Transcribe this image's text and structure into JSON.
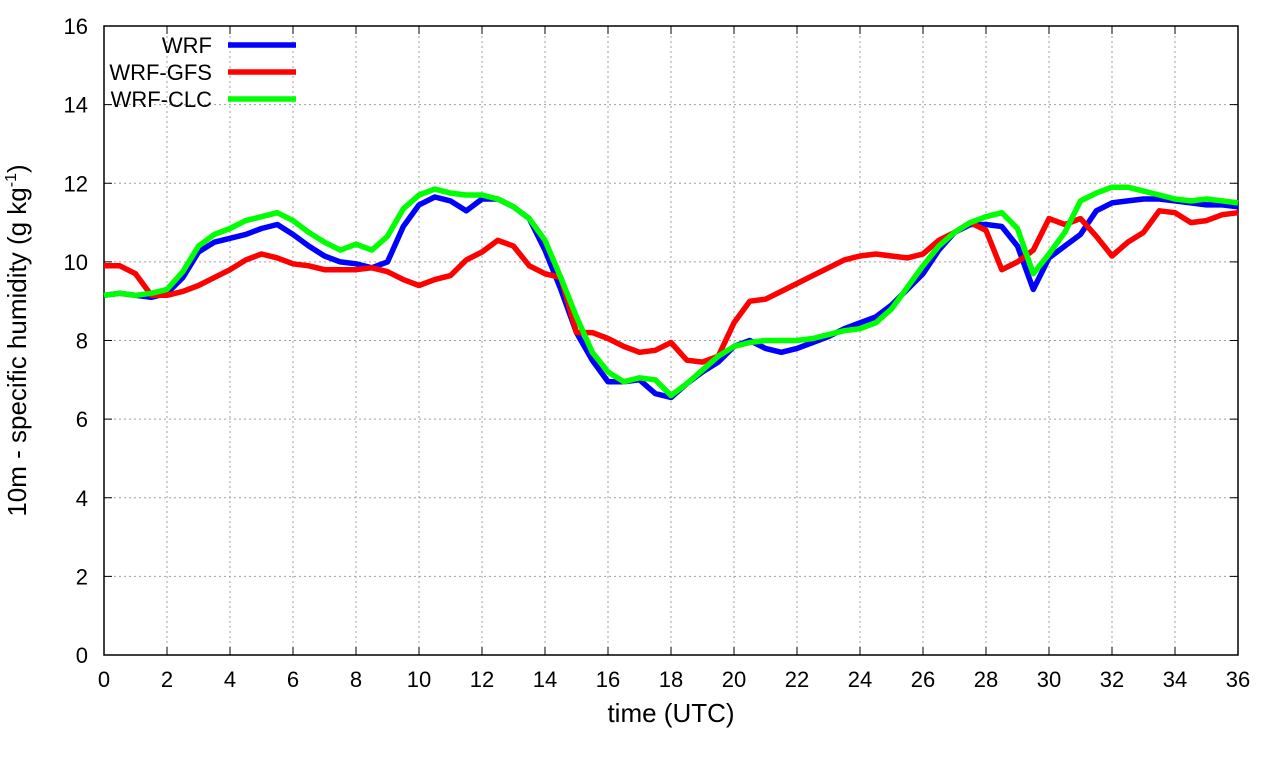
{
  "chart_data": {
    "type": "line",
    "xlabel": "time (UTC)",
    "ylabel_main": "10m - specific humidity (g kg",
    "ylabel_sup": "-1",
    "ylabel_close": ")",
    "xlim": [
      0,
      36
    ],
    "ylim": [
      0,
      16
    ],
    "xticks": [
      0,
      2,
      4,
      6,
      8,
      10,
      12,
      14,
      16,
      18,
      20,
      22,
      24,
      26,
      28,
      30,
      32,
      34,
      36
    ],
    "yticks": [
      0,
      2,
      4,
      6,
      8,
      10,
      12,
      14,
      16
    ],
    "grid": true,
    "legend_position": "top-left",
    "series": [
      {
        "name": "WRF",
        "color": "#0000ff",
        "points": [
          [
            0,
            9.15
          ],
          [
            0.5,
            9.2
          ],
          [
            1,
            9.15
          ],
          [
            1.5,
            9.1
          ],
          [
            2,
            9.2
          ],
          [
            2.5,
            9.6
          ],
          [
            3,
            10.25
          ],
          [
            3.5,
            10.5
          ],
          [
            4,
            10.6
          ],
          [
            4.5,
            10.7
          ],
          [
            5,
            10.85
          ],
          [
            5.5,
            10.95
          ],
          [
            6,
            10.7
          ],
          [
            6.5,
            10.4
          ],
          [
            7,
            10.15
          ],
          [
            7.5,
            10.0
          ],
          [
            8,
            9.95
          ],
          [
            8.5,
            9.85
          ],
          [
            9,
            10.0
          ],
          [
            9.5,
            10.9
          ],
          [
            10,
            11.45
          ],
          [
            10.5,
            11.65
          ],
          [
            11,
            11.55
          ],
          [
            11.5,
            11.3
          ],
          [
            12,
            11.6
          ],
          [
            12.5,
            11.6
          ],
          [
            13,
            11.4
          ],
          [
            13.5,
            11.1
          ],
          [
            14,
            10.3
          ],
          [
            14.5,
            9.3
          ],
          [
            15,
            8.2
          ],
          [
            15.5,
            7.5
          ],
          [
            16,
            6.95
          ],
          [
            16.5,
            6.95
          ],
          [
            17,
            7.0
          ],
          [
            17.5,
            6.65
          ],
          [
            18,
            6.55
          ],
          [
            18.5,
            6.9
          ],
          [
            19,
            7.2
          ],
          [
            19.5,
            7.45
          ],
          [
            20,
            7.85
          ],
          [
            20.5,
            8.0
          ],
          [
            21,
            7.8
          ],
          [
            21.5,
            7.7
          ],
          [
            22,
            7.8
          ],
          [
            22.5,
            7.95
          ],
          [
            23,
            8.1
          ],
          [
            23.5,
            8.3
          ],
          [
            24,
            8.45
          ],
          [
            24.5,
            8.6
          ],
          [
            25,
            8.9
          ],
          [
            25.5,
            9.3
          ],
          [
            26,
            9.7
          ],
          [
            26.5,
            10.3
          ],
          [
            27,
            10.75
          ],
          [
            27.5,
            10.95
          ],
          [
            28,
            10.95
          ],
          [
            28.5,
            10.9
          ],
          [
            29,
            10.4
          ],
          [
            29.5,
            9.3
          ],
          [
            30,
            10.1
          ],
          [
            30.5,
            10.4
          ],
          [
            31,
            10.7
          ],
          [
            31.5,
            11.3
          ],
          [
            32,
            11.5
          ],
          [
            32.5,
            11.55
          ],
          [
            33,
            11.6
          ],
          [
            33.5,
            11.6
          ],
          [
            34,
            11.55
          ],
          [
            34.5,
            11.5
          ],
          [
            35,
            11.45
          ],
          [
            35.5,
            11.45
          ],
          [
            36,
            11.4
          ]
        ]
      },
      {
        "name": "WRF-GFS",
        "color": "#ff0000",
        "points": [
          [
            0,
            9.9
          ],
          [
            0.5,
            9.9
          ],
          [
            1,
            9.7
          ],
          [
            1.5,
            9.15
          ],
          [
            2,
            9.15
          ],
          [
            2.5,
            9.25
          ],
          [
            3,
            9.4
          ],
          [
            3.5,
            9.6
          ],
          [
            4,
            9.8
          ],
          [
            4.5,
            10.05
          ],
          [
            5,
            10.2
          ],
          [
            5.5,
            10.1
          ],
          [
            6,
            9.95
          ],
          [
            6.5,
            9.9
          ],
          [
            7,
            9.8
          ],
          [
            7.5,
            9.8
          ],
          [
            8,
            9.8
          ],
          [
            8.5,
            9.85
          ],
          [
            9,
            9.75
          ],
          [
            9.5,
            9.55
          ],
          [
            10,
            9.4
          ],
          [
            10.5,
            9.55
          ],
          [
            11,
            9.65
          ],
          [
            11.5,
            10.05
          ],
          [
            12,
            10.25
          ],
          [
            12.5,
            10.55
          ],
          [
            13,
            10.4
          ],
          [
            13.5,
            9.9
          ],
          [
            14,
            9.7
          ],
          [
            14.5,
            9.6
          ],
          [
            15,
            8.2
          ],
          [
            15.5,
            8.2
          ],
          [
            16,
            8.05
          ],
          [
            16.5,
            7.85
          ],
          [
            17,
            7.7
          ],
          [
            17.5,
            7.75
          ],
          [
            18,
            7.95
          ],
          [
            18.5,
            7.5
          ],
          [
            19,
            7.45
          ],
          [
            19.5,
            7.6
          ],
          [
            20,
            8.45
          ],
          [
            20.5,
            9.0
          ],
          [
            21,
            9.05
          ],
          [
            21.5,
            9.25
          ],
          [
            22,
            9.45
          ],
          [
            22.5,
            9.65
          ],
          [
            23,
            9.85
          ],
          [
            23.5,
            10.05
          ],
          [
            24,
            10.15
          ],
          [
            24.5,
            10.2
          ],
          [
            25,
            10.15
          ],
          [
            25.5,
            10.1
          ],
          [
            26,
            10.2
          ],
          [
            26.5,
            10.55
          ],
          [
            27,
            10.75
          ],
          [
            27.5,
            11.0
          ],
          [
            28,
            10.8
          ],
          [
            28.5,
            9.8
          ],
          [
            29,
            10.0
          ],
          [
            29.5,
            10.3
          ],
          [
            30,
            11.1
          ],
          [
            30.5,
            10.95
          ],
          [
            31,
            11.1
          ],
          [
            31.5,
            10.65
          ],
          [
            32,
            10.15
          ],
          [
            32.5,
            10.5
          ],
          [
            33,
            10.75
          ],
          [
            33.5,
            11.3
          ],
          [
            34,
            11.25
          ],
          [
            34.5,
            11.0
          ],
          [
            35,
            11.05
          ],
          [
            35.5,
            11.2
          ],
          [
            36,
            11.25
          ]
        ]
      },
      {
        "name": "WRF-CLC",
        "color": "#00ff00",
        "points": [
          [
            0,
            9.15
          ],
          [
            0.5,
            9.2
          ],
          [
            1,
            9.15
          ],
          [
            1.5,
            9.2
          ],
          [
            2,
            9.3
          ],
          [
            2.5,
            9.75
          ],
          [
            3,
            10.4
          ],
          [
            3.5,
            10.7
          ],
          [
            4,
            10.85
          ],
          [
            4.5,
            11.05
          ],
          [
            5,
            11.15
          ],
          [
            5.5,
            11.25
          ],
          [
            6,
            11.05
          ],
          [
            6.5,
            10.75
          ],
          [
            7,
            10.5
          ],
          [
            7.5,
            10.3
          ],
          [
            8,
            10.45
          ],
          [
            8.5,
            10.3
          ],
          [
            9,
            10.65
          ],
          [
            9.5,
            11.35
          ],
          [
            10,
            11.7
          ],
          [
            10.5,
            11.85
          ],
          [
            11,
            11.75
          ],
          [
            11.5,
            11.7
          ],
          [
            12,
            11.7
          ],
          [
            12.5,
            11.6
          ],
          [
            13,
            11.4
          ],
          [
            13.5,
            11.1
          ],
          [
            14,
            10.55
          ],
          [
            14.5,
            9.6
          ],
          [
            15,
            8.6
          ],
          [
            15.5,
            7.7
          ],
          [
            16,
            7.2
          ],
          [
            16.5,
            6.95
          ],
          [
            17,
            7.05
          ],
          [
            17.5,
            7.0
          ],
          [
            18,
            6.6
          ],
          [
            18.5,
            6.9
          ],
          [
            19,
            7.25
          ],
          [
            19.5,
            7.6
          ],
          [
            20,
            7.85
          ],
          [
            20.5,
            7.95
          ],
          [
            21,
            8.0
          ],
          [
            21.5,
            8.0
          ],
          [
            22,
            8.0
          ],
          [
            22.5,
            8.05
          ],
          [
            23,
            8.15
          ],
          [
            23.5,
            8.25
          ],
          [
            24,
            8.3
          ],
          [
            24.5,
            8.45
          ],
          [
            25,
            8.8
          ],
          [
            25.5,
            9.35
          ],
          [
            26,
            9.9
          ],
          [
            26.5,
            10.4
          ],
          [
            27,
            10.75
          ],
          [
            27.5,
            11.0
          ],
          [
            28,
            11.15
          ],
          [
            28.5,
            11.25
          ],
          [
            29,
            10.85
          ],
          [
            29.5,
            9.7
          ],
          [
            30,
            10.2
          ],
          [
            30.5,
            10.75
          ],
          [
            31,
            11.55
          ],
          [
            31.5,
            11.75
          ],
          [
            32,
            11.9
          ],
          [
            32.5,
            11.9
          ],
          [
            33,
            11.8
          ],
          [
            33.5,
            11.7
          ],
          [
            34,
            11.6
          ],
          [
            34.5,
            11.55
          ],
          [
            35,
            11.6
          ],
          [
            35.5,
            11.55
          ],
          [
            36,
            11.5
          ]
        ]
      }
    ]
  }
}
